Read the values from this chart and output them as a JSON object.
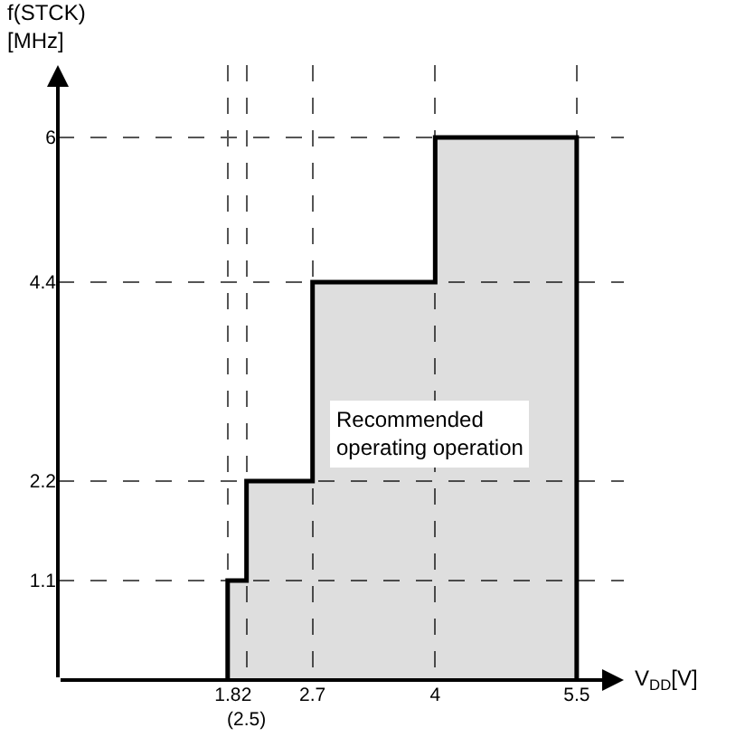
{
  "chart_data": {
    "type": "step",
    "xlabel": "V$_{DD}$[V]",
    "ylabel": "f(STCK)\n[MHz]",
    "series": [
      {
        "x": [
          1.8,
          1.8,
          2,
          2.7,
          4,
          5.5,
          5.5
        ],
        "values": [
          0,
          1.1,
          2.2,
          4.4,
          6,
          6,
          0
        ],
        "color": "#000000"
      }
    ],
    "xlim": [
      0,
      6
    ],
    "ylim": [
      0,
      6.8
    ],
    "xticks": [
      1.8,
      {
        "value": 2,
        "label": "2\n(2.5)"
      },
      2.7,
      4,
      5.5
    ],
    "yticks": [
      1.1,
      2.2,
      4.4,
      6
    ],
    "grid": true,
    "line_style": "solid",
    "marker": "none",
    "annotations": [
      "Recommended\noperating operation"
    ]
  }
}
